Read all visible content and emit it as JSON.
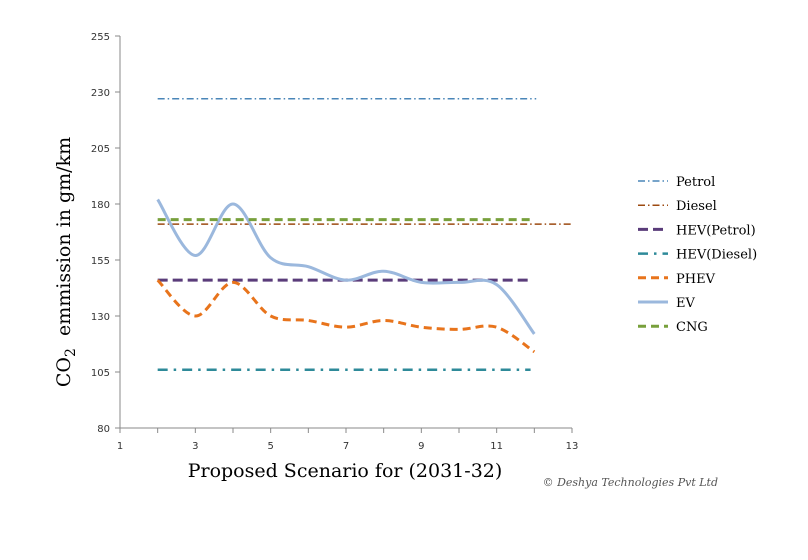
{
  "chart_data": {
    "type": "line",
    "title": "",
    "xlabel": "Proposed Scenario for (2031-32)",
    "ylabel_prefix": "CO",
    "ylabel_sub": "2",
    "ylabel_suffix": "  emmission in gm/km",
    "xlim": [
      1,
      13
    ],
    "ylim": [
      80,
      255
    ],
    "xticks": [
      1,
      3,
      5,
      7,
      9,
      11,
      13
    ],
    "yticks": [
      80,
      105,
      130,
      155,
      180,
      205,
      230,
      255
    ],
    "legend_position": "right",
    "series": [
      {
        "name": "Petrol",
        "color": "#4a86b8",
        "dash": "dashdot",
        "smooth": false,
        "x": [
          2,
          12.05
        ],
        "y": [
          227,
          227
        ]
      },
      {
        "name": "Diesel",
        "color": "#9c4a10",
        "dash": "dashdot",
        "smooth": false,
        "x": [
          2,
          13
        ],
        "y": [
          171,
          171
        ]
      },
      {
        "name": "HEV(Petrol)",
        "color": "#5a3c7a",
        "dash": "dash",
        "smooth": false,
        "x": [
          2,
          11.9
        ],
        "y": [
          146,
          146
        ]
      },
      {
        "name": "HEV(Diesel)",
        "color": "#2e8a99",
        "dash": "dashdot-bold",
        "smooth": false,
        "x": [
          2,
          11.9
        ],
        "y": [
          106,
          106
        ]
      },
      {
        "name": "PHEV",
        "color": "#e8741c",
        "dash": "dash-bold",
        "smooth": true,
        "x": [
          2,
          3,
          4,
          5,
          6,
          7,
          8,
          9,
          10,
          11,
          12
        ],
        "y": [
          146,
          130,
          145,
          130,
          128,
          125,
          128,
          125,
          124,
          125,
          114
        ]
      },
      {
        "name": "EV",
        "color": "#9bb8dd",
        "dash": "solid",
        "smooth": true,
        "x": [
          2,
          3,
          4,
          5,
          6,
          7,
          8,
          9,
          10,
          11,
          12
        ],
        "y": [
          182,
          157,
          180,
          156,
          152,
          146,
          150,
          145,
          145,
          144,
          122
        ]
      },
      {
        "name": "CNG",
        "color": "#78a03c",
        "dash": "dash-bold",
        "smooth": false,
        "x": [
          2,
          11.9
        ],
        "y": [
          173,
          173
        ]
      }
    ]
  },
  "copyright": "© Deshya Technologies Pvt Ltd"
}
